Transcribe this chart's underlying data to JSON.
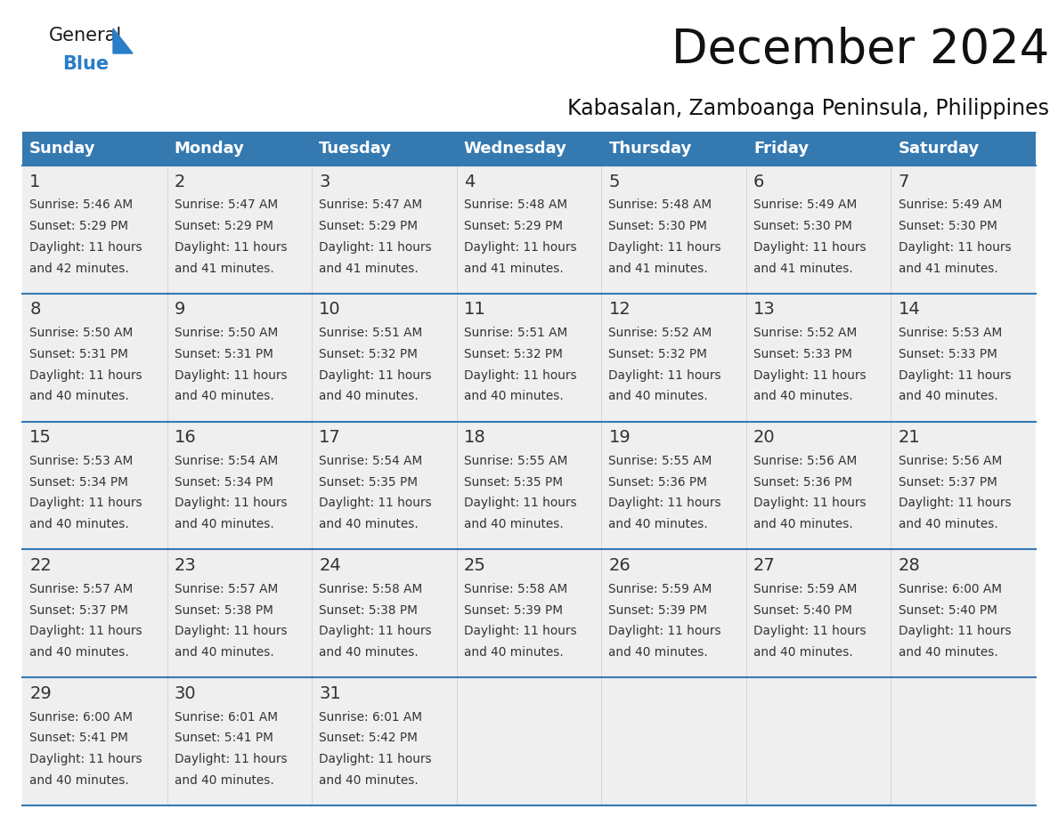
{
  "title": "December 2024",
  "subtitle": "Kabasalan, Zamboanga Peninsula, Philippines",
  "header_color": "#3579B1",
  "header_text_color": "#FFFFFF",
  "cell_bg_color": "#EFEFEF",
  "day_names": [
    "Sunday",
    "Monday",
    "Tuesday",
    "Wednesday",
    "Thursday",
    "Friday",
    "Saturday"
  ],
  "title_fontsize": 38,
  "subtitle_fontsize": 17,
  "header_fontsize": 13,
  "day_num_fontsize": 14,
  "cell_fontsize": 9.8,
  "calendar": [
    [
      {
        "day": 1,
        "sunrise": "5:46 AM",
        "sunset": "5:29 PM",
        "daylight_hours": 11,
        "daylight_minutes": 42
      },
      {
        "day": 2,
        "sunrise": "5:47 AM",
        "sunset": "5:29 PM",
        "daylight_hours": 11,
        "daylight_minutes": 41
      },
      {
        "day": 3,
        "sunrise": "5:47 AM",
        "sunset": "5:29 PM",
        "daylight_hours": 11,
        "daylight_minutes": 41
      },
      {
        "day": 4,
        "sunrise": "5:48 AM",
        "sunset": "5:29 PM",
        "daylight_hours": 11,
        "daylight_minutes": 41
      },
      {
        "day": 5,
        "sunrise": "5:48 AM",
        "sunset": "5:30 PM",
        "daylight_hours": 11,
        "daylight_minutes": 41
      },
      {
        "day": 6,
        "sunrise": "5:49 AM",
        "sunset": "5:30 PM",
        "daylight_hours": 11,
        "daylight_minutes": 41
      },
      {
        "day": 7,
        "sunrise": "5:49 AM",
        "sunset": "5:30 PM",
        "daylight_hours": 11,
        "daylight_minutes": 41
      }
    ],
    [
      {
        "day": 8,
        "sunrise": "5:50 AM",
        "sunset": "5:31 PM",
        "daylight_hours": 11,
        "daylight_minutes": 40
      },
      {
        "day": 9,
        "sunrise": "5:50 AM",
        "sunset": "5:31 PM",
        "daylight_hours": 11,
        "daylight_minutes": 40
      },
      {
        "day": 10,
        "sunrise": "5:51 AM",
        "sunset": "5:32 PM",
        "daylight_hours": 11,
        "daylight_minutes": 40
      },
      {
        "day": 11,
        "sunrise": "5:51 AM",
        "sunset": "5:32 PM",
        "daylight_hours": 11,
        "daylight_minutes": 40
      },
      {
        "day": 12,
        "sunrise": "5:52 AM",
        "sunset": "5:32 PM",
        "daylight_hours": 11,
        "daylight_minutes": 40
      },
      {
        "day": 13,
        "sunrise": "5:52 AM",
        "sunset": "5:33 PM",
        "daylight_hours": 11,
        "daylight_minutes": 40
      },
      {
        "day": 14,
        "sunrise": "5:53 AM",
        "sunset": "5:33 PM",
        "daylight_hours": 11,
        "daylight_minutes": 40
      }
    ],
    [
      {
        "day": 15,
        "sunrise": "5:53 AM",
        "sunset": "5:34 PM",
        "daylight_hours": 11,
        "daylight_minutes": 40
      },
      {
        "day": 16,
        "sunrise": "5:54 AM",
        "sunset": "5:34 PM",
        "daylight_hours": 11,
        "daylight_minutes": 40
      },
      {
        "day": 17,
        "sunrise": "5:54 AM",
        "sunset": "5:35 PM",
        "daylight_hours": 11,
        "daylight_minutes": 40
      },
      {
        "day": 18,
        "sunrise": "5:55 AM",
        "sunset": "5:35 PM",
        "daylight_hours": 11,
        "daylight_minutes": 40
      },
      {
        "day": 19,
        "sunrise": "5:55 AM",
        "sunset": "5:36 PM",
        "daylight_hours": 11,
        "daylight_minutes": 40
      },
      {
        "day": 20,
        "sunrise": "5:56 AM",
        "sunset": "5:36 PM",
        "daylight_hours": 11,
        "daylight_minutes": 40
      },
      {
        "day": 21,
        "sunrise": "5:56 AM",
        "sunset": "5:37 PM",
        "daylight_hours": 11,
        "daylight_minutes": 40
      }
    ],
    [
      {
        "day": 22,
        "sunrise": "5:57 AM",
        "sunset": "5:37 PM",
        "daylight_hours": 11,
        "daylight_minutes": 40
      },
      {
        "day": 23,
        "sunrise": "5:57 AM",
        "sunset": "5:38 PM",
        "daylight_hours": 11,
        "daylight_minutes": 40
      },
      {
        "day": 24,
        "sunrise": "5:58 AM",
        "sunset": "5:38 PM",
        "daylight_hours": 11,
        "daylight_minutes": 40
      },
      {
        "day": 25,
        "sunrise": "5:58 AM",
        "sunset": "5:39 PM",
        "daylight_hours": 11,
        "daylight_minutes": 40
      },
      {
        "day": 26,
        "sunrise": "5:59 AM",
        "sunset": "5:39 PM",
        "daylight_hours": 11,
        "daylight_minutes": 40
      },
      {
        "day": 27,
        "sunrise": "5:59 AM",
        "sunset": "5:40 PM",
        "daylight_hours": 11,
        "daylight_minutes": 40
      },
      {
        "day": 28,
        "sunrise": "6:00 AM",
        "sunset": "5:40 PM",
        "daylight_hours": 11,
        "daylight_minutes": 40
      }
    ],
    [
      {
        "day": 29,
        "sunrise": "6:00 AM",
        "sunset": "5:41 PM",
        "daylight_hours": 11,
        "daylight_minutes": 40
      },
      {
        "day": 30,
        "sunrise": "6:01 AM",
        "sunset": "5:41 PM",
        "daylight_hours": 11,
        "daylight_minutes": 40
      },
      {
        "day": 31,
        "sunrise": "6:01 AM",
        "sunset": "5:42 PM",
        "daylight_hours": 11,
        "daylight_minutes": 40
      },
      null,
      null,
      null,
      null
    ]
  ],
  "logo_color_general": "#1a1a1a",
  "logo_color_blue": "#2a7dc9",
  "logo_triangle_color": "#2a7dc9",
  "divider_color": "#3579B1",
  "border_color": "#3579B1",
  "text_color": "#333333"
}
